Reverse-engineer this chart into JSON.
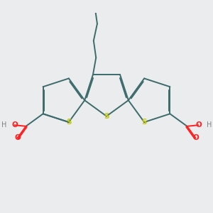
{
  "background_color": "#eaeced",
  "bond_color": "#3d6b6b",
  "S_color": "#c8c800",
  "O_color": "#ff2020",
  "H_color": "#808080",
  "line_width": 1.4,
  "dbo": 0.018,
  "figsize": [
    3.0,
    3.0
  ],
  "dpi": 100,
  "xlim": [
    -1.6,
    1.6
  ],
  "ylim": [
    -1.55,
    1.55
  ]
}
